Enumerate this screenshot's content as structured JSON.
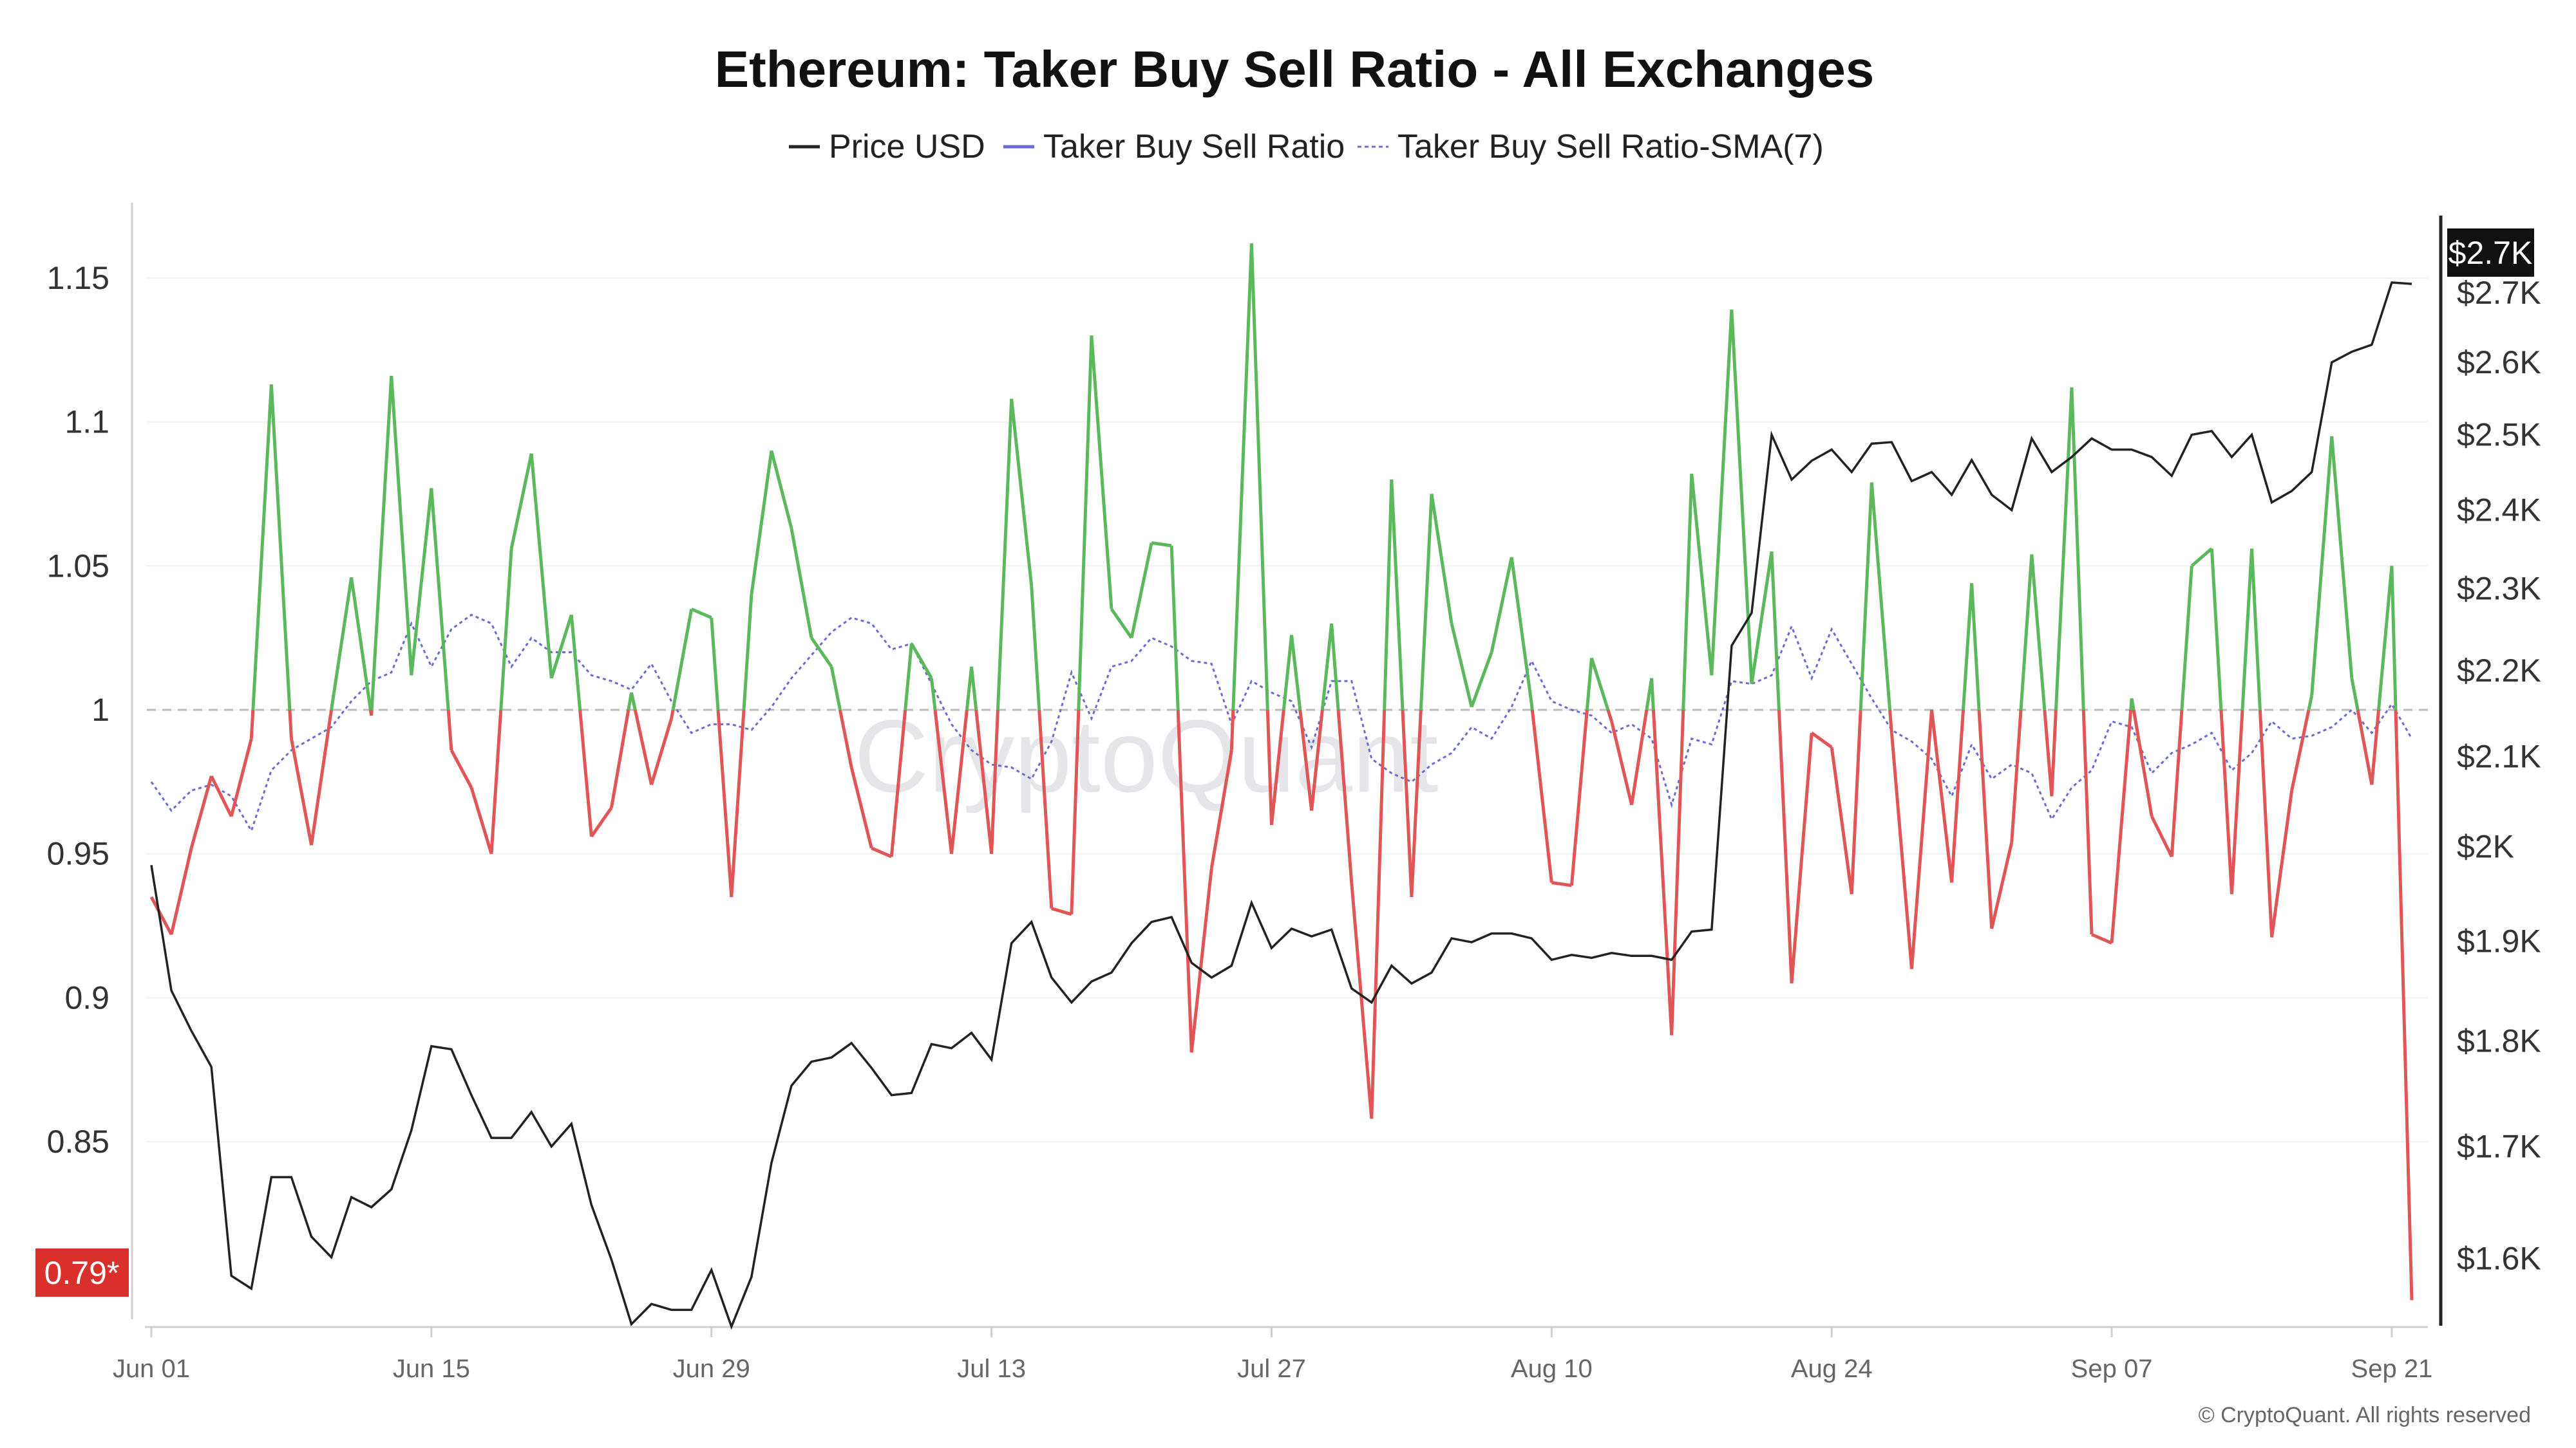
{
  "title": "Ethereum: Taker Buy Sell Ratio - All Exchanges",
  "legend": [
    {
      "label": "Price USD",
      "color": "#222222",
      "style": "solid"
    },
    {
      "label": "Taker Buy Sell Ratio",
      "color": "#6b6bd6",
      "style": "solid"
    },
    {
      "label": "Taker Buy Sell Ratio-SMA(7)",
      "color": "#6b6bd6",
      "style": "dotted"
    }
  ],
  "watermark": "CryptoQuant",
  "copyright": "© CryptoQuant. All rights reserved",
  "badges": {
    "last_ratio": "0.79*",
    "last_price": "$2.7K"
  },
  "colors": {
    "above": "#5cb85c",
    "below": "#e05555",
    "price": "#222222",
    "sma": "#6b6bd6",
    "baseline": "#bbbbbb",
    "ratio_badge": "#d9302b",
    "price_badge": "#111111"
  },
  "chart_data": {
    "type": "line",
    "x_start": "2023-06-01",
    "x_end": "2023-09-22",
    "x_ticks": [
      "Jun 01",
      "Jun 15",
      "Jun 29",
      "Jul 13",
      "Jul 27",
      "Aug 10",
      "Aug 24",
      "Sep 07",
      "Sep 21"
    ],
    "left_axis": {
      "ticks": [
        "1.15",
        "1.1",
        "1.05",
        "1",
        "0.95",
        "0.9",
        "0.85"
      ],
      "range": [
        0.785,
        1.175
      ]
    },
    "right_axis": {
      "ticks": [
        "$2.7K",
        "$2.6K",
        "$2.5K",
        "$2.4K",
        "$2.3K",
        "$2.2K",
        "$2.1K",
        "$2K",
        "$1.9K",
        "$1.8K",
        "$1.7K",
        "$1.6K"
      ],
      "ticks_value": [
        2700,
        2600,
        2500,
        2400,
        2300,
        2200,
        2100,
        2000,
        1900,
        1800,
        1700,
        1600
      ],
      "range": [
        1540,
        2830
      ],
      "scale": "log"
    },
    "baseline": 1,
    "series": [
      {
        "name": "Taker Buy Sell Ratio",
        "values": [
          0.935,
          0.922,
          0.952,
          0.977,
          0.963,
          0.99,
          1.113,
          0.99,
          0.953,
          1.0,
          1.046,
          0.998,
          1.116,
          1.012,
          1.077,
          0.986,
          0.973,
          0.95,
          1.056,
          1.089,
          1.011,
          1.033,
          0.956,
          0.966,
          1.006,
          0.974,
          0.997,
          1.035,
          1.032,
          0.935,
          1.04,
          1.09,
          1.063,
          1.025,
          1.015,
          0.98,
          0.952,
          0.949,
          1.023,
          1.011,
          0.95,
          1.015,
          0.95,
          1.108,
          1.043,
          0.931,
          0.929,
          1.13,
          1.035,
          1.025,
          1.058,
          1.057,
          0.881,
          0.945,
          0.986,
          1.162,
          0.96,
          1.026,
          0.965,
          1.03,
          0.94,
          0.858,
          1.08,
          0.935,
          1.075,
          1.03,
          1.001,
          1.02,
          1.053,
          1.002,
          0.94,
          0.939,
          1.018,
          0.996,
          0.967,
          1.011,
          0.887,
          1.082,
          1.012,
          1.139,
          1.009,
          1.055,
          0.905,
          0.992,
          0.987,
          0.936,
          1.079,
          0.992,
          0.91,
          1.0,
          0.94,
          1.044,
          0.924,
          0.954,
          1.054,
          0.97,
          1.112,
          0.922,
          0.919,
          1.004,
          0.963,
          0.949,
          1.05,
          1.056,
          0.936,
          1.056,
          0.921,
          0.972,
          1.005,
          1.095,
          1.011,
          0.974,
          1.05,
          0.795
        ]
      },
      {
        "name": "Taker Buy Sell Ratio-SMA(7)",
        "values": [
          0.975,
          0.965,
          0.972,
          0.974,
          0.97,
          0.958,
          0.979,
          0.986,
          0.99,
          0.994,
          1.003,
          1.01,
          1.013,
          1.03,
          1.015,
          1.028,
          1.033,
          1.03,
          1.015,
          1.025,
          1.02,
          1.02,
          1.012,
          1.01,
          1.007,
          1.016,
          1.003,
          0.992,
          0.995,
          0.995,
          0.993,
          1.001,
          1.011,
          1.019,
          1.027,
          1.032,
          1.03,
          1.021,
          1.023,
          1.009,
          0.995,
          0.986,
          0.981,
          0.98,
          0.976,
          0.989,
          1.013,
          0.997,
          1.015,
          1.017,
          1.025,
          1.022,
          1.017,
          1.016,
          0.995,
          1.01,
          1.006,
          1.003,
          0.987,
          1.01,
          1.01,
          0.983,
          0.978,
          0.975,
          0.981,
          0.985,
          0.994,
          0.99,
          1.001,
          1.017,
          1.003,
          1.0,
          0.998,
          0.992,
          0.995,
          0.99,
          0.967,
          0.99,
          0.988,
          1.01,
          1.009,
          1.012,
          1.029,
          1.011,
          1.028,
          1.016,
          1.004,
          0.993,
          0.989,
          0.983,
          0.97,
          0.988,
          0.976,
          0.981,
          0.978,
          0.962,
          0.973,
          0.979,
          0.996,
          0.994,
          0.978,
          0.985,
          0.988,
          0.992,
          0.979,
          0.985,
          0.996,
          0.99,
          0.991,
          0.994,
          1.0,
          0.992,
          1.002,
          0.99
        ]
      },
      {
        "name": "Price USD",
        "axis": "right",
        "values": [
          1980,
          1850,
          1810,
          1775,
          1585,
          1574,
          1672,
          1672,
          1619,
          1601,
          1654,
          1645,
          1661,
          1715,
          1795,
          1792,
          1748,
          1708,
          1708,
          1732,
          1700,
          1721,
          1647,
          1599,
          1544,
          1561,
          1556,
          1556,
          1590,
          1542,
          1584,
          1685,
          1757,
          1780,
          1784,
          1798,
          1774,
          1748,
          1750,
          1797,
          1793,
          1808,
          1782,
          1898,
          1920,
          1863,
          1838,
          1859,
          1868,
          1898,
          1920,
          1925,
          1878,
          1863,
          1875,
          1940,
          1893,
          1913,
          1905,
          1912,
          1852,
          1838,
          1875,
          1857,
          1868,
          1903,
          1899,
          1908,
          1908,
          1903,
          1881,
          1886,
          1883,
          1888,
          1885,
          1885,
          1881,
          1910,
          1912,
          2230,
          2270,
          2500,
          2440,
          2465,
          2480,
          2450,
          2488,
          2490,
          2438,
          2450,
          2420,
          2466,
          2420,
          2400,
          2495,
          2450,
          2470,
          2495,
          2480,
          2480,
          2470,
          2445,
          2500,
          2505,
          2470,
          2500,
          2410,
          2425,
          2450,
          2600,
          2615,
          2625,
          2715,
          2713
        ]
      }
    ]
  }
}
